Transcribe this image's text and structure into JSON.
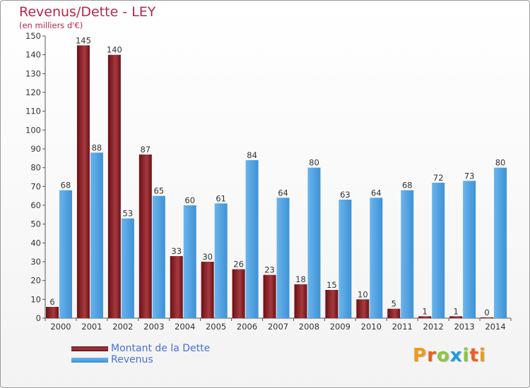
{
  "title": "Revenus/Dette - LEY",
  "subtitle": "(en milliers d'€)",
  "colors": {
    "dette": "#6b1015",
    "dette_light": "#a53a3f",
    "revenus": "#3d92d6",
    "revenus_light": "#6bb4ec",
    "text_accent": "#b5284a",
    "legend_text": "#4a6fd8"
  },
  "legend": {
    "dette_label": "Montant de la Dette",
    "revenus_label": "Revenus"
  },
  "logo": {
    "letters": [
      "P",
      "r",
      "o",
      "x",
      "i",
      "t",
      "i"
    ],
    "colors": [
      "#f29a1a",
      "#e8621f",
      "#8cc63f",
      "#1f9fd8",
      "#8cc63f",
      "#e8621f",
      "#f29a1a"
    ]
  },
  "chart_data": {
    "type": "bar",
    "categories": [
      "2000",
      "2001",
      "2002",
      "2003",
      "2004",
      "2005",
      "2006",
      "2007",
      "2008",
      "2009",
      "2010",
      "2011",
      "2012",
      "2013",
      "2014"
    ],
    "series": [
      {
        "name": "Montant de la Dette",
        "values": [
          6,
          145,
          140,
          87,
          33,
          30,
          26,
          23,
          18,
          15,
          10,
          5,
          1,
          1,
          0
        ]
      },
      {
        "name": "Revenus",
        "values": [
          68,
          88,
          53,
          65,
          60,
          61,
          84,
          64,
          80,
          63,
          64,
          68,
          72,
          73,
          80
        ]
      }
    ],
    "yticks": [
      0,
      10,
      20,
      30,
      40,
      50,
      60,
      70,
      80,
      90,
      100,
      110,
      120,
      130,
      140,
      150
    ],
    "ylim": [
      0,
      150
    ],
    "grid": false,
    "legend_position": "bottom-left"
  }
}
